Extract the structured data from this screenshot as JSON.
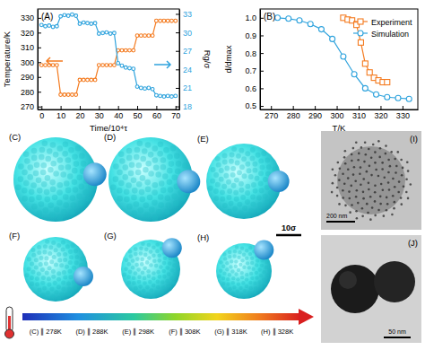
{
  "chart_data": [
    {
      "type": "line",
      "title": "(A)",
      "x_label": "Time/10⁴τ",
      "y_label": "Temperature/K",
      "y2_label": "Rg/σ",
      "x": [
        0,
        2,
        4,
        6,
        8,
        10,
        12,
        14,
        16,
        18,
        20,
        22,
        24,
        26,
        28,
        30,
        32,
        34,
        36,
        38,
        40,
        42,
        44,
        46,
        48,
        50,
        52,
        54,
        56,
        58,
        60,
        62,
        64,
        66,
        68,
        70
      ],
      "xlim": [
        -2,
        72
      ],
      "xticks": [
        0,
        10,
        20,
        30,
        40,
        50,
        60,
        70
      ],
      "ylim": [
        268,
        336
      ],
      "yticks": [
        270,
        280,
        290,
        300,
        310,
        320,
        330
      ],
      "y2lim": [
        17.5,
        33.8
      ],
      "y2ticks": [
        18,
        21,
        24,
        27,
        30,
        33
      ],
      "grid": false,
      "series": [
        {
          "color": "#f47b20",
          "marker": "circle",
          "line_style": "solid",
          "values": [
            298,
            298,
            298,
            298,
            298,
            278,
            278,
            278,
            278,
            278,
            288,
            288,
            288,
            288,
            288,
            298,
            298,
            298,
            298,
            298,
            308,
            308,
            308,
            308,
            308,
            318,
            318,
            318,
            318,
            318,
            328,
            328,
            328,
            328,
            328,
            328
          ]
        },
        {
          "color": "#2fa3dd",
          "marker": "circle",
          "line_style": "solid",
          "axis": "y2",
          "values": [
            31.2,
            31.0,
            31.1,
            30.9,
            31.0,
            32.6,
            32.8,
            32.7,
            32.9,
            32.7,
            31.4,
            31.6,
            31.5,
            31.4,
            31.5,
            29.8,
            29.9,
            30.0,
            29.8,
            29.9,
            25.0,
            24.6,
            24.3,
            24.2,
            24.1,
            21.2,
            21.0,
            20.9,
            21.0,
            20.8,
            19.8,
            19.7,
            19.6,
            19.7,
            19.6,
            19.7
          ]
        }
      ]
    },
    {
      "type": "line",
      "title": "(B)",
      "x_label": "T/K",
      "y_label": "d/dmax",
      "xlim": [
        265,
        337
      ],
      "xticks": [
        270,
        280,
        290,
        300,
        310,
        320,
        330
      ],
      "ylim": [
        0.48,
        1.05
      ],
      "yticks": [
        0.5,
        0.6,
        0.7,
        0.8,
        0.9,
        {
          "value": 1,
          "label": "1.0"
        }
      ],
      "grid": false,
      "legend": "top-right",
      "series": [
        {
          "name": "Experiment",
          "color": "#f47b20",
          "marker": "square",
          "line_style": "solid",
          "x": [
            303,
            305,
            307,
            309,
            311,
            313,
            315,
            317,
            319,
            321,
            323
          ],
          "values": [
            1.0,
            0.99,
            0.985,
            0.96,
            0.86,
            0.74,
            0.69,
            0.66,
            0.645,
            0.635,
            0.635
          ]
        },
        {
          "name": "Simulation",
          "color": "#2fa3dd",
          "marker": "circle",
          "line_style": "solid",
          "x": [
            273,
            278,
            283,
            288,
            293,
            298,
            303,
            308,
            313,
            318,
            323,
            328,
            333
          ],
          "values": [
            1.0,
            0.995,
            0.985,
            0.965,
            0.935,
            0.88,
            0.78,
            0.68,
            0.6,
            0.565,
            0.55,
            0.545,
            0.54
          ]
        }
      ]
    }
  ],
  "panels": {
    "labels": [
      "(C)",
      "(D)",
      "(E)",
      "(F)",
      "(G)",
      "(H)",
      "(I)",
      "(J)"
    ],
    "scale_bar": "10σ",
    "colorbar_labels": [
      "(C) ∥ 278K",
      "(D) ∥ 288K",
      "(E) ∥ 298K",
      "(F) ∥ 308K",
      "(G) ∥ 318K",
      "(H) ∥ 328K"
    ],
    "tem_scale_bars": [
      "200 nm",
      "50 nm"
    ]
  }
}
